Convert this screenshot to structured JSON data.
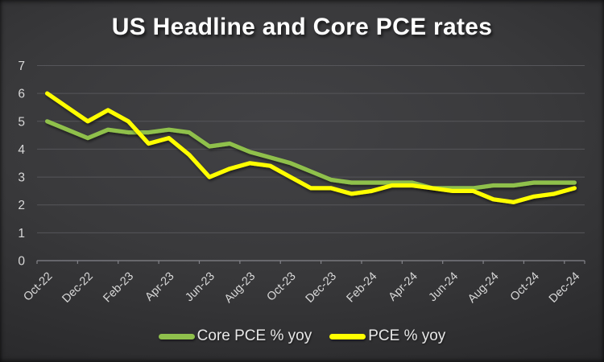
{
  "slide": {
    "title": "US Headline and Core PCE rates"
  },
  "colors": {
    "core_line": "#8FC04C",
    "pce_line": "#FFFF00",
    "gridline": "#56565a",
    "axis_line": "#84848a",
    "tick_label": "#d8d8d8",
    "title_text": "#ffffff",
    "legend_text": "#e8e8e8"
  },
  "legend": {
    "items": [
      {
        "label": "Core PCE % yoy"
      },
      {
        "label": "PCE % yoy"
      }
    ]
  },
  "chart_data": {
    "type": "line",
    "title": "US Headline and Core PCE rates",
    "xlabel": "",
    "ylabel": "",
    "ylim": [
      0,
      7
    ],
    "yticks": [
      0,
      1,
      2,
      3,
      4,
      5,
      6,
      7
    ],
    "grid": "horizontal",
    "legend_position": "bottom",
    "categories": [
      "Oct-22",
      "Nov-22",
      "Dec-22",
      "Jan-23",
      "Feb-23",
      "Mar-23",
      "Apr-23",
      "May-23",
      "Jun-23",
      "Jul-23",
      "Aug-23",
      "Sep-23",
      "Oct-23",
      "Nov-23",
      "Dec-23",
      "Jan-24",
      "Feb-24",
      "Mar-24",
      "Apr-24",
      "May-24",
      "Jun-24",
      "Jul-24",
      "Aug-24",
      "Sep-24",
      "Oct-24",
      "Nov-24",
      "Dec-24"
    ],
    "x_tick_labels_shown": [
      "Oct-22",
      "Dec-22",
      "Feb-23",
      "Apr-23",
      "Jun-23",
      "Aug-23",
      "Oct-23",
      "Dec-23",
      "Feb-24",
      "Apr-24",
      "Jun-24",
      "Aug-24",
      "Oct-24",
      "Dec-24"
    ],
    "series": [
      {
        "name": "Core PCE % yoy",
        "color": "#8FC04C",
        "values": [
          5.0,
          4.7,
          4.4,
          4.7,
          4.6,
          4.6,
          4.7,
          4.6,
          4.1,
          4.2,
          3.9,
          3.7,
          3.5,
          3.2,
          2.9,
          2.8,
          2.8,
          2.8,
          2.8,
          2.6,
          2.6,
          2.6,
          2.7,
          2.7,
          2.8,
          2.8,
          2.8
        ]
      },
      {
        "name": "PCE % yoy",
        "color": "#FFFF00",
        "values": [
          6.0,
          5.5,
          5.0,
          5.4,
          5.0,
          4.2,
          4.4,
          3.8,
          3.0,
          3.3,
          3.5,
          3.4,
          3.0,
          2.6,
          2.6,
          2.4,
          2.5,
          2.7,
          2.7,
          2.6,
          2.5,
          2.5,
          2.2,
          2.1,
          2.3,
          2.4,
          2.6
        ]
      }
    ]
  }
}
